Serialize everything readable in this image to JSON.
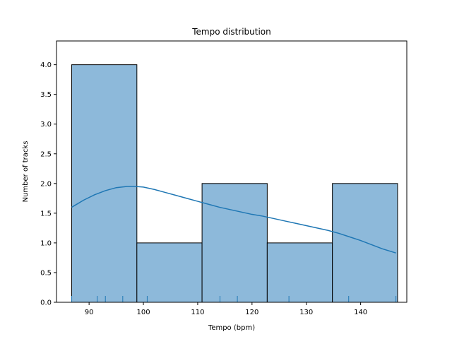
{
  "chart_data": {
    "type": "bar",
    "title": "Tempo distribution",
    "xlabel": "Tempo (bpm)",
    "ylabel": "Number of tracks",
    "xlim": [
      84,
      148.5
    ],
    "ylim": [
      0,
      4.4
    ],
    "xticks": [
      90,
      100,
      110,
      120,
      130,
      140
    ],
    "yticks": [
      0.0,
      0.5,
      1.0,
      1.5,
      2.0,
      2.5,
      3.0,
      3.5,
      4.0
    ],
    "bins": [
      {
        "start": 86.8,
        "end": 98.8,
        "count": 4
      },
      {
        "start": 98.8,
        "end": 110.8,
        "count": 1
      },
      {
        "start": 110.8,
        "end": 122.8,
        "count": 2
      },
      {
        "start": 122.8,
        "end": 134.8,
        "count": 1
      },
      {
        "start": 134.8,
        "end": 146.8,
        "count": 2
      }
    ],
    "kde": {
      "x": [
        86.8,
        89,
        91,
        93,
        95,
        97,
        98.5,
        100,
        102,
        104,
        106,
        108,
        110,
        112,
        114,
        116,
        118,
        120,
        122,
        124,
        126,
        128,
        130,
        132,
        134,
        136,
        138,
        140,
        142,
        144,
        146.5
      ],
      "y": [
        1.6,
        1.72,
        1.81,
        1.88,
        1.93,
        1.95,
        1.95,
        1.94,
        1.9,
        1.85,
        1.8,
        1.75,
        1.7,
        1.65,
        1.6,
        1.56,
        1.52,
        1.48,
        1.45,
        1.41,
        1.37,
        1.33,
        1.29,
        1.25,
        1.21,
        1.16,
        1.1,
        1.04,
        0.97,
        0.9,
        0.83
      ]
    },
    "rug": [
      86.8,
      91.5,
      93.0,
      96.2,
      100.7,
      114.1,
      117.3,
      126.8,
      137.8,
      146.5
    ],
    "colors": {
      "bar_fill": "#8db9da",
      "bar_edge": "#000000",
      "kde_line": "#1f77b4",
      "rug": "#1f77b4"
    },
    "grid": false
  }
}
